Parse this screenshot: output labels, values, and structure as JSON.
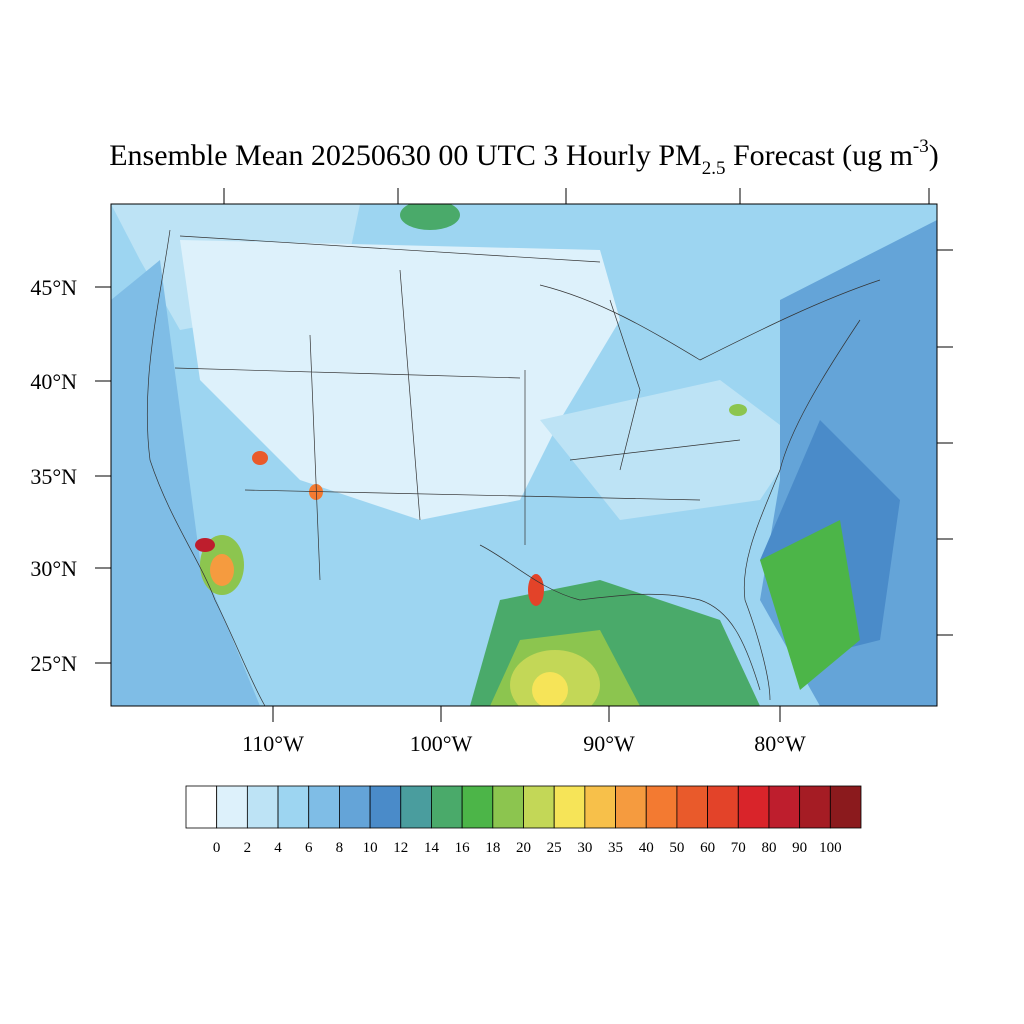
{
  "title": {
    "main": "Ensemble Mean 20250630 00 UTC 3 Hourly PM",
    "sub": "2.5",
    "rest": " Forecast (ug m",
    "sup": "-3",
    "end": ")"
  },
  "lat_labels": [
    "45°N",
    "40°N",
    "35°N",
    "30°N",
    "25°N"
  ],
  "lon_labels": [
    "110°W",
    "100°W",
    "90°W",
    "80°W"
  ],
  "colorbar": {
    "colors": [
      "#ffffff",
      "#ddf1fb",
      "#bde3f5",
      "#9dd5f1",
      "#7fbde6",
      "#64a4d8",
      "#4a8bc9",
      "#4a9d9e",
      "#4aaa6a",
      "#4cb548",
      "#8cc54f",
      "#c3d757",
      "#f6e458",
      "#f7c04a",
      "#f59b3f",
      "#f37a31",
      "#e95a2b",
      "#e34329",
      "#d9242a",
      "#be1e2d",
      "#a51c24",
      "#8b1a1d"
    ],
    "labels": [
      0,
      2,
      4,
      6,
      8,
      10,
      12,
      14,
      16,
      18,
      20,
      25,
      30,
      35,
      40,
      50,
      60,
      70,
      80,
      90,
      100
    ]
  }
}
